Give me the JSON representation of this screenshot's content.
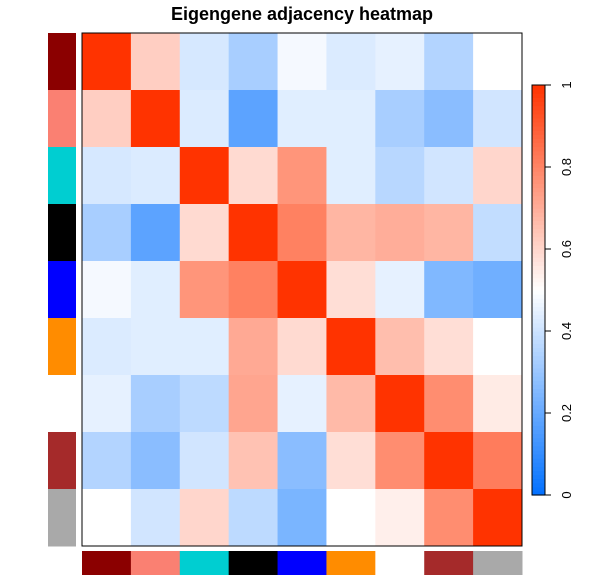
{
  "chart_data": {
    "type": "heatmap",
    "title": "Eigengene adjacency heatmap",
    "xlabel": "",
    "ylabel": "",
    "module_colors": [
      "#8b0000",
      "#fa8072",
      "#00ced1",
      "#000000",
      "#0000ff",
      "#ff8c00",
      "#ffffff",
      "#a52a2a",
      "#a9a9a9"
    ],
    "matrix": [
      [
        1.0,
        0.62,
        0.42,
        0.33,
        0.48,
        0.43,
        0.45,
        0.35,
        0.5
      ],
      [
        0.62,
        1.0,
        0.43,
        0.18,
        0.44,
        0.44,
        0.33,
        0.27,
        0.41
      ],
      [
        0.42,
        0.43,
        1.0,
        0.59,
        0.76,
        0.44,
        0.36,
        0.41,
        0.6
      ],
      [
        0.33,
        0.18,
        0.59,
        1.0,
        0.81,
        0.68,
        0.7,
        0.68,
        0.38
      ],
      [
        0.48,
        0.44,
        0.76,
        0.81,
        1.0,
        0.58,
        0.45,
        0.25,
        0.22
      ],
      [
        0.43,
        0.44,
        0.44,
        0.71,
        0.59,
        1.0,
        0.66,
        0.58,
        0.5
      ],
      [
        0.45,
        0.33,
        0.37,
        0.72,
        0.45,
        0.67,
        1.0,
        0.78,
        0.55
      ],
      [
        0.35,
        0.27,
        0.41,
        0.65,
        0.27,
        0.58,
        0.78,
        1.0,
        0.82
      ],
      [
        0.5,
        0.41,
        0.6,
        0.37,
        0.24,
        0.5,
        0.54,
        0.78,
        1.0
      ]
    ],
    "color_scale": {
      "min": 0,
      "max": 1,
      "low_color": "#0070ff",
      "mid_color": "#ffffff",
      "high_color": "#ff3300",
      "ticks": [
        "0",
        "0.2",
        "0.4",
        "0.6",
        "0.8",
        "1"
      ]
    },
    "legend_placement": "right"
  }
}
